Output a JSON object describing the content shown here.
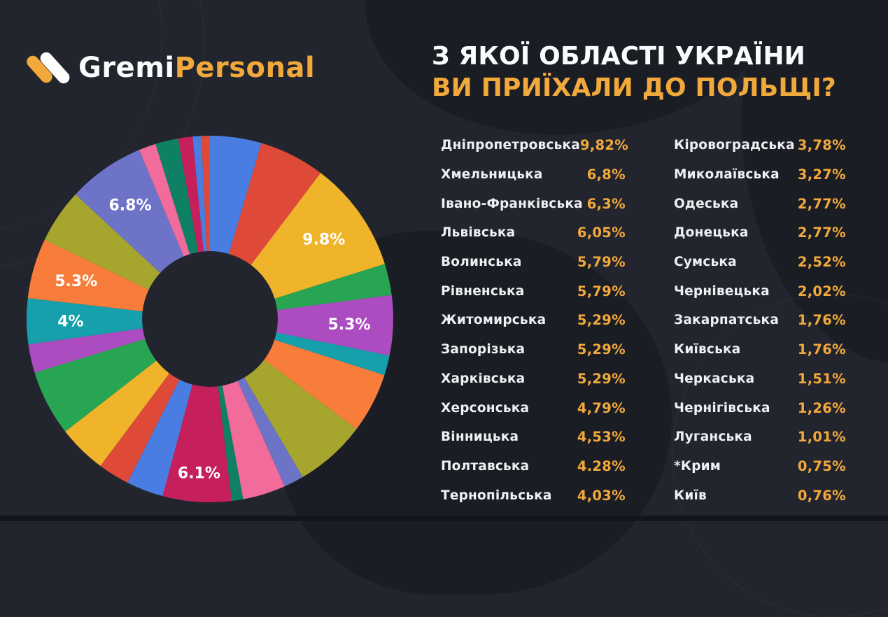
{
  "brand": {
    "name_part1": "Gremi",
    "name_part2": "Personal"
  },
  "title": {
    "line1": "З ЯКОЇ ОБЛАСТІ УКРАЇНИ",
    "line2": "ВИ ПРИЇХАЛИ ДО ПОЛЬЩІ?"
  },
  "colors": {
    "background": "#23252e",
    "background_blob": "#1b1d24",
    "accent_amber": "#F2A93B",
    "text_white": "#eef0f3",
    "slice_label": "#ffffff"
  },
  "chart_data": {
    "type": "pie",
    "subtype": "donut",
    "title": "З якої області України ви приїхали до Польщі?",
    "start_angle_deg": 0,
    "direction": "clockwise",
    "order_note": "slices run alphabetically by region name, starting at 12 o'clock",
    "inner_radius_ratio": 0.37,
    "slices": [
      {
        "name": "Вінницька",
        "value": 4.53,
        "color": "#4a7de2",
        "label": ""
      },
      {
        "name": "Волинська",
        "value": 5.79,
        "color": "#df4a38",
        "label": ""
      },
      {
        "name": "Дніпропетровська",
        "value": 9.82,
        "color": "#f0b42a",
        "label": "9.8%"
      },
      {
        "name": "Донецька",
        "value": 2.77,
        "color": "#28a552",
        "label": ""
      },
      {
        "name": "Житомирська",
        "value": 5.29,
        "color": "#ab4cc0",
        "label": "5.3%"
      },
      {
        "name": "Закарпатська",
        "value": 1.76,
        "color": "#16a0ac",
        "label": ""
      },
      {
        "name": "Запорізька",
        "value": 5.29,
        "color": "#f87d3b",
        "label": ""
      },
      {
        "name": "Івано-Франківська",
        "value": 6.3,
        "color": "#a6a52d",
        "label": ""
      },
      {
        "name": "Київська",
        "value": 1.76,
        "color": "#6d74c8",
        "label": ""
      },
      {
        "name": "Кіровоградська",
        "value": 3.78,
        "color": "#f16b9b",
        "label": ""
      },
      {
        "name": "Луганська",
        "value": 1.01,
        "color": "#0e8164",
        "label": ""
      },
      {
        "name": "Львівська",
        "value": 6.05,
        "color": "#c6205c",
        "label": "6.1%"
      },
      {
        "name": "Миколаївська",
        "value": 3.27,
        "color": "#4a7de2",
        "label": ""
      },
      {
        "name": "Одеська",
        "value": 2.77,
        "color": "#df4a38",
        "label": ""
      },
      {
        "name": "Полтавська",
        "value": 4.28,
        "color": "#f0b42a",
        "label": ""
      },
      {
        "name": "Рівненська",
        "value": 5.79,
        "color": "#28a552",
        "label": ""
      },
      {
        "name": "Сумська",
        "value": 2.52,
        "color": "#ab4cc0",
        "label": ""
      },
      {
        "name": "Тернопільська",
        "value": 4.03,
        "color": "#16a0ac",
        "label": "4%"
      },
      {
        "name": "Харківська",
        "value": 5.29,
        "color": "#f87d3b",
        "label": "5.3%"
      },
      {
        "name": "Херсонська",
        "value": 4.79,
        "color": "#a6a52d",
        "label": ""
      },
      {
        "name": "Хмельницька",
        "value": 6.8,
        "color": "#6d74c8",
        "label": "6.8%"
      },
      {
        "name": "Черкаська",
        "value": 1.51,
        "color": "#f16b9b",
        "label": ""
      },
      {
        "name": "Чернівецька",
        "value": 2.02,
        "color": "#0e8164",
        "label": ""
      },
      {
        "name": "Чернігівська",
        "value": 1.26,
        "color": "#c6205c",
        "label": ""
      },
      {
        "name": "Київ",
        "value": 0.76,
        "color": "#4a7de2",
        "label": ""
      },
      {
        "name": "Крим",
        "value": 0.75,
        "color": "#df4a38",
        "label": ""
      }
    ]
  },
  "legend": {
    "columns": [
      {
        "rows": [
          {
            "name": "Дніпропетровська",
            "value": "9,82%"
          },
          {
            "name": "Хмельницька",
            "value": "6,8%"
          },
          {
            "name": "Івано-Франківська",
            "value": "6,3%"
          },
          {
            "name": "Львівська",
            "value": "6,05%"
          },
          {
            "name": "Волинська",
            "value": "5,79%"
          },
          {
            "name": "Рівненська",
            "value": "5,79%"
          },
          {
            "name": "Житомирська",
            "value": "5,29%"
          },
          {
            "name": "Запорізька",
            "value": "5,29%"
          },
          {
            "name": "Харківська",
            "value": "5,29%"
          },
          {
            "name": "Херсонська",
            "value": "4,79%"
          },
          {
            "name": "Вінницька",
            "value": "4,53%"
          },
          {
            "name": "Полтавська",
            "value": "4.28%"
          },
          {
            "name": "Тернопільська",
            "value": "4,03%"
          }
        ]
      },
      {
        "rows": [
          {
            "name": "Кіровоградська",
            "value": "3,78%"
          },
          {
            "name": "Миколаївська",
            "value": "3,27%"
          },
          {
            "name": "Одеська",
            "value": "2,77%"
          },
          {
            "name": "Донецька",
            "value": "2,77%"
          },
          {
            "name": "Сумська",
            "value": "2,52%"
          },
          {
            "name": "Чернівецька",
            "value": "2,02%"
          },
          {
            "name": "Закарпатська",
            "value": "1,76%"
          },
          {
            "name": "Київська",
            "value": "1,76%"
          },
          {
            "name": "Черкаська",
            "value": "1,51%"
          },
          {
            "name": "Чернігівська",
            "value": "1,26%"
          },
          {
            "name": "Луганська",
            "value": "1,01%"
          },
          {
            "name": "*Крим",
            "value": "0,75%"
          },
          {
            "name": "Київ",
            "value": "0,76%"
          }
        ]
      }
    ]
  }
}
